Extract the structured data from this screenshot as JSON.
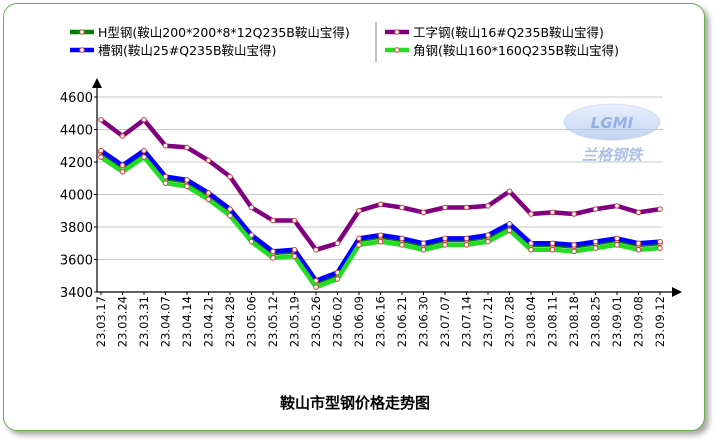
{
  "chart_data": {
    "type": "line",
    "title": "鞍山市型钢价格走势图",
    "categories": [
      "23.03.17",
      "23.03.24",
      "23.03.31",
      "23.04.07",
      "23.04.14",
      "23.04.21",
      "23.04.28",
      "23.05.06",
      "23.05.12",
      "23.05.19",
      "23.05.26",
      "23.06.02",
      "23.06.09",
      "23.06.16",
      "23.06.21",
      "23.06.30",
      "23.07.07",
      "23.07.14",
      "23.07.21",
      "23.07.28",
      "23.08.04",
      "23.08.11",
      "23.08.18",
      "23.08.25",
      "23.09.01",
      "23.09.08",
      "23.09.12"
    ],
    "ylim": [
      3400,
      4600
    ],
    "yticks": [
      3400,
      3600,
      3800,
      4000,
      4200,
      4400,
      4600
    ],
    "series": [
      {
        "name": "H型钢(鞍山200*200*8*12Q235B鞍山宝得)",
        "color": "#008000",
        "values": [
          4260,
          4170,
          4260,
          4100,
          4080,
          4000,
          3900,
          3740,
          3640,
          3650,
          3460,
          3510,
          3720,
          3740,
          3720,
          3690,
          3720,
          3720,
          3740,
          3810,
          3690,
          3690,
          3680,
          3700,
          3720,
          3690,
          3700
        ]
      },
      {
        "name": "工字钢(鞍山16#Q235B鞍山宝得)",
        "color": "#800080",
        "values": [
          4460,
          4360,
          4460,
          4300,
          4290,
          4210,
          4110,
          3920,
          3840,
          3840,
          3660,
          3700,
          3900,
          3940,
          3920,
          3890,
          3920,
          3920,
          3930,
          4020,
          3880,
          3890,
          3880,
          3910,
          3930,
          3890,
          3910
        ]
      },
      {
        "name": "槽钢(鞍山25#Q235B鞍山宝得)",
        "color": "#0000ff",
        "values": [
          4270,
          4180,
          4270,
          4110,
          4090,
          4010,
          3910,
          3750,
          3650,
          3660,
          3470,
          3520,
          3730,
          3750,
          3730,
          3700,
          3730,
          3730,
          3750,
          3820,
          3700,
          3700,
          3690,
          3710,
          3730,
          3700,
          3710
        ]
      },
      {
        "name": "角钢(鞍山160*160Q235B鞍山宝得)",
        "color": "#22dd22",
        "values": [
          4230,
          4140,
          4230,
          4070,
          4050,
          3970,
          3870,
          3710,
          3610,
          3620,
          3430,
          3480,
          3690,
          3710,
          3690,
          3660,
          3690,
          3690,
          3710,
          3780,
          3660,
          3660,
          3650,
          3670,
          3690,
          3660,
          3670
        ]
      }
    ],
    "legend_position": "top",
    "grid": true
  },
  "watermark": {
    "logo": "LGMI",
    "text": "兰格钢铁"
  }
}
